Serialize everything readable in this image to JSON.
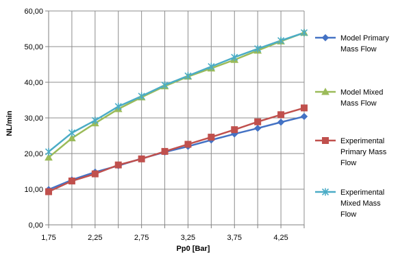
{
  "chart_data": {
    "type": "line",
    "xlabel": "Pp0 [Bar]",
    "ylabel": "NL/min",
    "x_ticks": [
      "1,75",
      "2,25",
      "2,75",
      "3,25",
      "3,75",
      "4,25"
    ],
    "y_ticks": [
      "0,00",
      "10,00",
      "20,00",
      "30,00",
      "40,00",
      "50,00",
      "60,00"
    ],
    "xlim": [
      1.75,
      4.5
    ],
    "ylim": [
      0,
      60
    ],
    "grid": true,
    "legend_position": "right",
    "x": [
      1.75,
      2.0,
      2.25,
      2.5,
      2.75,
      3.0,
      3.25,
      3.5,
      3.75,
      4.0,
      4.25,
      4.5
    ],
    "series": [
      {
        "name": "Model Primary Mass Flow",
        "label_lines": [
          "Model Primary",
          "Mass Flow"
        ],
        "color": "#4472c4",
        "marker": "diamond",
        "values": [
          9.9,
          12.6,
          14.8,
          16.6,
          18.6,
          20.4,
          22.0,
          23.8,
          25.5,
          27.1,
          28.8,
          30.4
        ]
      },
      {
        "name": "Model Mixed Mass Flow",
        "label_lines": [
          "Model Mixed",
          "Mass Flow"
        ],
        "color": "#9bbb59",
        "marker": "triangle",
        "values": [
          18.9,
          24.3,
          28.5,
          32.5,
          35.8,
          38.9,
          41.6,
          43.9,
          46.3,
          48.9,
          51.5,
          53.9
        ]
      },
      {
        "name": "Experimental Primary Mass Flow",
        "label_lines": [
          "Experimental",
          "Primary Mass",
          "Flow"
        ],
        "color": "#c0504d",
        "marker": "square",
        "values": [
          9.3,
          12.3,
          14.3,
          16.8,
          18.5,
          20.6,
          22.6,
          24.6,
          26.7,
          28.9,
          30.9,
          32.8
        ]
      },
      {
        "name": "Experimental Mixed Mass Flow",
        "label_lines": [
          "Experimental",
          "Mixed Mass",
          "Flow"
        ],
        "color": "#4bacc6",
        "marker": "star",
        "values": [
          20.5,
          25.8,
          29.3,
          33.2,
          36.1,
          39.2,
          41.8,
          44.4,
          47.0,
          49.4,
          51.7,
          53.9
        ]
      }
    ]
  }
}
